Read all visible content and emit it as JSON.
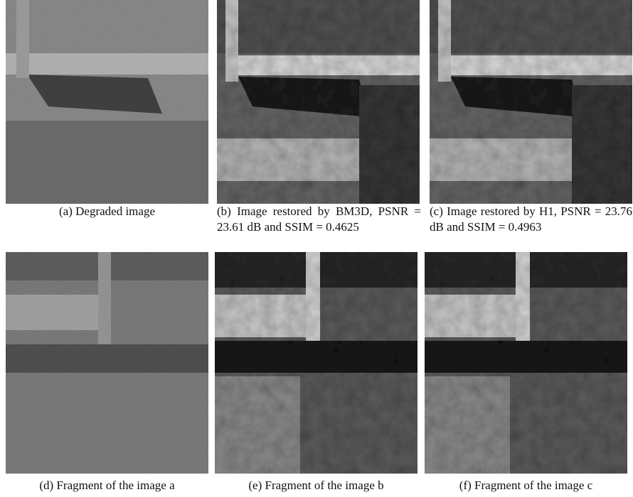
{
  "panels": [
    {
      "label": "(a)",
      "caption": "Degraded image"
    },
    {
      "label": "(b)",
      "caption": "Image restored by BM3D, PSNR = 23.61 dB and SSIM = 0.4625"
    },
    {
      "label": "(c)",
      "caption": "Image restored by H1, PSNR = 23.76 dB and SSIM = 0.4963"
    },
    {
      "label": "(d)",
      "caption": "Fragment of the image a"
    },
    {
      "label": "(e)",
      "caption": "Fragment of the image b"
    },
    {
      "label": "(f)",
      "caption": "Fragment of the image c"
    }
  ]
}
